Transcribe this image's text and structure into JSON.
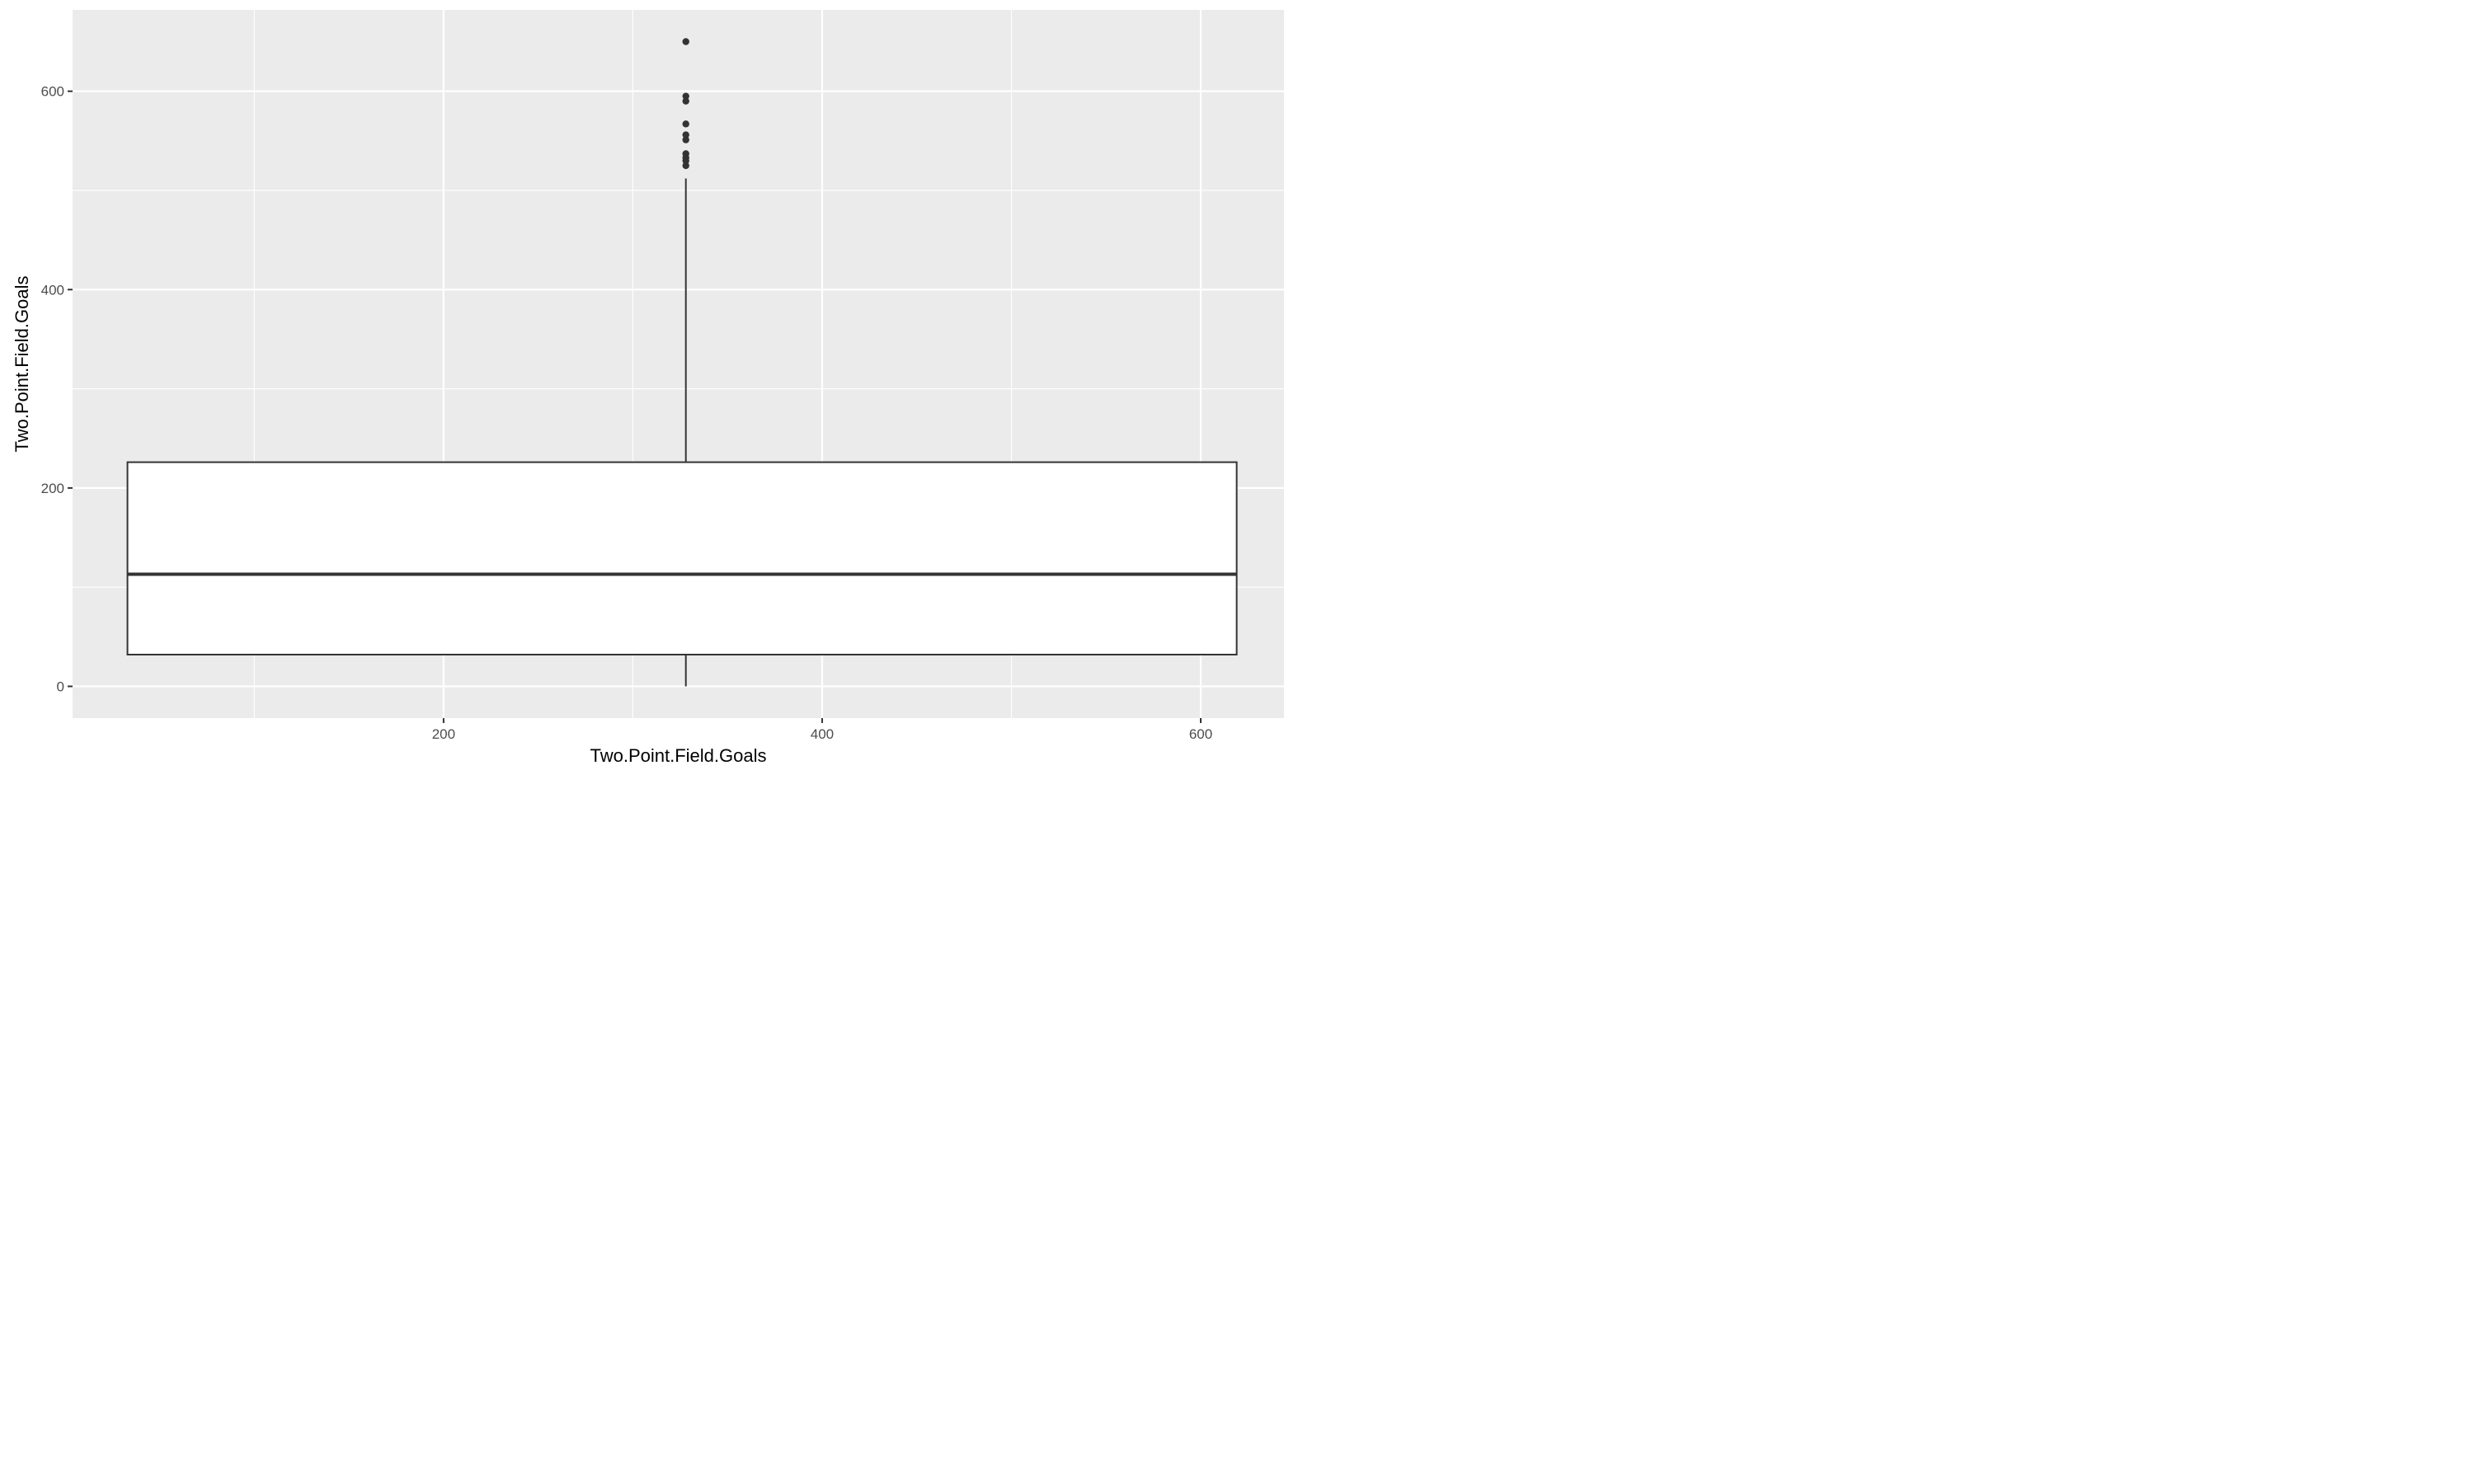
{
  "chart_data": {
    "type": "boxplot",
    "xlabel": "Two.Point.Field.Goals",
    "ylabel": "Two.Point.Field.Goals",
    "xlim": [
      4,
      644
    ],
    "ylim": [
      -32,
      682
    ],
    "x_ticks": [
      200,
      400,
      600
    ],
    "x_tick_labels": [
      "200",
      "400",
      "600"
    ],
    "y_ticks": [
      0,
      200,
      400,
      600
    ],
    "y_tick_labels": [
      "0",
      "200",
      "400",
      "600"
    ],
    "grid": true,
    "legend": "none",
    "box": {
      "x_center": 328,
      "x_min": 33,
      "x_max": 619,
      "whisker_low": 0,
      "q1": 32,
      "median": 113,
      "q3": 226,
      "whisker_high": 512,
      "outliers": [
        650,
        595,
        590,
        567,
        556,
        551,
        537,
        533,
        530,
        525
      ]
    },
    "colors": {
      "panel": "#EBEBEB",
      "grid_major": "#FFFFFF",
      "box_fill": "#FFFFFF",
      "box_line": "#333333",
      "tick_text": "#4D4D4D"
    }
  }
}
